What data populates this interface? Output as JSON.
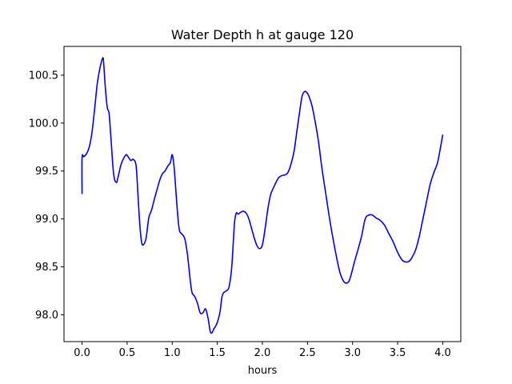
{
  "chart_data": {
    "type": "line",
    "title": "Water Depth h at gauge 120",
    "xlabel": "hours",
    "ylabel": "",
    "xlim": [
      -0.2,
      4.2
    ],
    "ylim": [
      97.72,
      100.8
    ],
    "xticks": [
      {
        "value": 0.0,
        "label": "0.0"
      },
      {
        "value": 0.5,
        "label": "0.5"
      },
      {
        "value": 1.0,
        "label": "1.0"
      },
      {
        "value": 1.5,
        "label": "1.5"
      },
      {
        "value": 2.0,
        "label": "2.0"
      },
      {
        "value": 2.5,
        "label": "2.5"
      },
      {
        "value": 3.0,
        "label": "3.0"
      },
      {
        "value": 3.5,
        "label": "3.5"
      },
      {
        "value": 4.0,
        "label": "4.0"
      }
    ],
    "yticks": [
      {
        "value": 98.0,
        "label": "98.0"
      },
      {
        "value": 98.5,
        "label": "98.5"
      },
      {
        "value": 99.0,
        "label": "99.0"
      },
      {
        "value": 99.5,
        "label": "99.5"
      },
      {
        "value": 100.0,
        "label": "100.0"
      },
      {
        "value": 100.5,
        "label": "100.5"
      }
    ],
    "grid": false,
    "legend": "none",
    "series": [
      {
        "color": "#0000ff",
        "x": [
          0.0,
          0.0,
          0.02,
          0.05,
          0.08,
          0.11,
          0.14,
          0.17,
          0.2,
          0.23,
          0.24,
          0.26,
          0.28,
          0.3,
          0.32,
          0.35,
          0.38,
          0.4,
          0.43,
          0.46,
          0.49,
          0.51,
          0.54,
          0.57,
          0.6,
          0.62,
          0.64,
          0.66,
          0.68,
          0.71,
          0.74,
          0.77,
          0.8,
          0.83,
          0.86,
          0.89,
          0.92,
          0.95,
          0.98,
          1.0,
          1.02,
          1.04,
          1.06,
          1.08,
          1.11,
          1.14,
          1.17,
          1.2,
          1.22,
          1.25,
          1.28,
          1.31,
          1.34,
          1.37,
          1.4,
          1.42,
          1.44,
          1.46,
          1.48,
          1.5,
          1.53,
          1.55,
          1.57,
          1.6,
          1.63,
          1.66,
          1.69,
          1.71,
          1.73,
          1.76,
          1.79,
          1.82,
          1.85,
          1.88,
          1.91,
          1.94,
          1.97,
          2.0,
          2.03,
          2.06,
          2.09,
          2.12,
          2.15,
          2.18,
          2.21,
          2.25,
          2.28,
          2.31,
          2.35,
          2.38,
          2.41,
          2.44,
          2.47,
          2.5,
          2.52,
          2.55,
          2.58,
          2.62,
          2.66,
          2.7,
          2.74,
          2.78,
          2.82,
          2.86,
          2.9,
          2.93,
          2.96,
          2.99,
          3.02,
          3.06,
          3.1,
          3.14,
          3.18,
          3.22,
          3.26,
          3.3,
          3.35,
          3.4,
          3.45,
          3.5,
          3.55,
          3.6,
          3.63,
          3.66,
          3.7,
          3.74,
          3.78,
          3.82,
          3.86,
          3.9,
          3.94,
          3.97,
          4.0
        ],
        "y": [
          99.26,
          99.64,
          99.65,
          99.68,
          99.75,
          99.9,
          100.15,
          100.42,
          100.58,
          100.68,
          100.62,
          100.35,
          100.16,
          100.1,
          99.85,
          99.47,
          99.38,
          99.44,
          99.56,
          99.63,
          99.67,
          99.65,
          99.61,
          99.62,
          99.55,
          99.25,
          98.95,
          98.76,
          98.73,
          98.8,
          99.01,
          99.09,
          99.2,
          99.3,
          99.4,
          99.47,
          99.5,
          99.55,
          99.59,
          99.67,
          99.55,
          99.3,
          99.05,
          98.88,
          98.84,
          98.79,
          98.62,
          98.36,
          98.23,
          98.19,
          98.12,
          98.02,
          98.02,
          98.06,
          97.95,
          97.83,
          97.81,
          97.85,
          97.88,
          97.92,
          98.03,
          98.18,
          98.23,
          98.25,
          98.29,
          98.5,
          98.95,
          99.06,
          99.05,
          99.07,
          99.08,
          99.06,
          99.0,
          98.9,
          98.8,
          98.72,
          98.69,
          98.73,
          98.9,
          99.1,
          99.25,
          99.32,
          99.38,
          99.43,
          99.45,
          99.46,
          99.48,
          99.55,
          99.7,
          99.9,
          100.1,
          100.28,
          100.33,
          100.31,
          100.27,
          100.18,
          100.04,
          99.82,
          99.53,
          99.28,
          99.03,
          98.81,
          98.61,
          98.44,
          98.35,
          98.33,
          98.35,
          98.44,
          98.55,
          98.68,
          98.82,
          99.0,
          99.04,
          99.04,
          99.01,
          98.99,
          98.94,
          98.85,
          98.76,
          98.65,
          98.57,
          98.55,
          98.56,
          98.6,
          98.68,
          98.82,
          99.0,
          99.18,
          99.36,
          99.48,
          99.58,
          99.72,
          99.88
        ]
      }
    ]
  }
}
